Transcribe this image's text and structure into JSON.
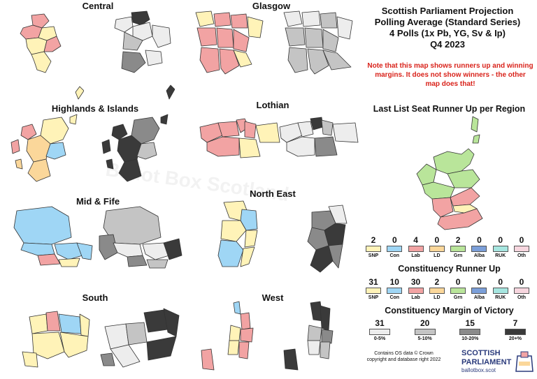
{
  "header": {
    "title_line1": "Scottish Parliament Projection",
    "title_line2": "Polling Average (Standard Series)",
    "title_line3": "4 Polls (1x Pb, YG, Sv & Ip)",
    "title_line4": "Q4 2023",
    "note": "Note that this map shows runners up and winning margins. It does not show winners - the other map does that!"
  },
  "regions": {
    "central": "Central",
    "glasgow": "Glasgow",
    "highlands": "Highlands & Islands",
    "lothian": "Lothian",
    "midfife": "Mid & Fife",
    "northeast": "North East",
    "south": "South",
    "west": "West"
  },
  "list_runner_up": {
    "title": "Last List Seat Runner Up per Region",
    "items": [
      {
        "num": "2",
        "label": "SNP",
        "color": "#fff3b8"
      },
      {
        "num": "0",
        "label": "Con",
        "color": "#9fd6f5"
      },
      {
        "num": "4",
        "label": "Lab",
        "color": "#f2a3a3"
      },
      {
        "num": "0",
        "label": "LD",
        "color": "#fbd79a"
      },
      {
        "num": "2",
        "label": "Grn",
        "color": "#b9e59a"
      },
      {
        "num": "0",
        "label": "Alba",
        "color": "#7b9fd9"
      },
      {
        "num": "0",
        "label": "RUK",
        "color": "#a6e6e0"
      },
      {
        "num": "0",
        "label": "Oth",
        "color": "#f7d6df"
      }
    ]
  },
  "constituency_runner_up": {
    "title": "Constituency Runner Up",
    "items": [
      {
        "num": "31",
        "label": "SNP",
        "color": "#fff3b8"
      },
      {
        "num": "10",
        "label": "Con",
        "color": "#9fd6f5"
      },
      {
        "num": "30",
        "label": "Lab",
        "color": "#f2a3a3"
      },
      {
        "num": "2",
        "label": "LD",
        "color": "#fbd79a"
      },
      {
        "num": "0",
        "label": "Grn",
        "color": "#b9e59a"
      },
      {
        "num": "0",
        "label": "Alba",
        "color": "#7b9fd9"
      },
      {
        "num": "0",
        "label": "RUK",
        "color": "#a6e6e0"
      },
      {
        "num": "0",
        "label": "Oth",
        "color": "#f7d6df"
      }
    ]
  },
  "margin_of_victory": {
    "title": "Constituency Margin of Victory",
    "items": [
      {
        "num": "31",
        "label": "0-5%",
        "color": "#ededed"
      },
      {
        "num": "20",
        "label": "5-10%",
        "color": "#c4c4c4"
      },
      {
        "num": "15",
        "label": "10-20%",
        "color": "#8a8a8a"
      },
      {
        "num": "7",
        "label": "20+%",
        "color": "#3a3a3a"
      }
    ]
  },
  "credit": {
    "line1": "Contains OS data © Crown",
    "line2": "copyright and database right 2022"
  },
  "logo": {
    "line1": "SCOTTISH",
    "line2": "PARLIAMENT",
    "line3": "ballotbox.scot"
  },
  "watermark": "Ballot Box Scotland"
}
